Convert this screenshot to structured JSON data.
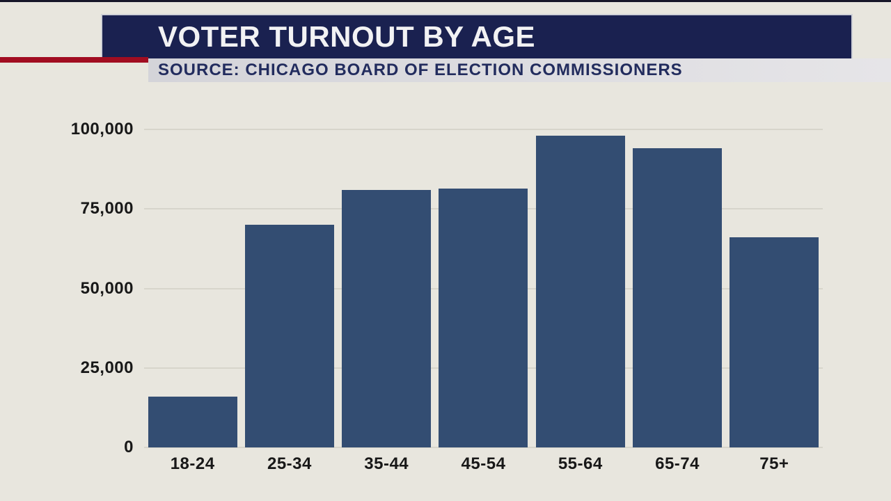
{
  "header": {
    "title": "VOTER TURNOUT BY AGE",
    "source": "SOURCE: CHICAGO BOARD OF ELECTION COMMISSIONERS"
  },
  "colors": {
    "background": "#e8e6de",
    "top_line": "#161629",
    "banner": "#1a2150",
    "banner_text": "#f2f2f4",
    "accent_red": "#a10d21",
    "source_band_left": "#d4d4d9",
    "source_band_right": "#e6e5e8",
    "source_text": "#222c5e",
    "bar": "#334d72",
    "gridline": "#d7d5cb",
    "axis_text": "#181818"
  },
  "chart_data": {
    "type": "bar",
    "title": "VOTER TURNOUT BY AGE",
    "subtitle": "SOURCE: CHICAGO BOARD OF ELECTION COMMISSIONERS",
    "categories": [
      "18-24",
      "25-34",
      "35-44",
      "45-54",
      "55-64",
      "65-74",
      "75+"
    ],
    "values": [
      16000,
      70000,
      81000,
      81500,
      98000,
      94000,
      66000
    ],
    "xlabel": "",
    "ylabel": "",
    "ylim": [
      0,
      100000
    ],
    "y_ticks": [
      {
        "value": 100000,
        "label": "100,000"
      },
      {
        "value": 75000,
        "label": "75,000"
      },
      {
        "value": 50000,
        "label": "50,000"
      },
      {
        "value": 25000,
        "label": "25,000"
      },
      {
        "value": 0,
        "label": "0"
      }
    ],
    "grid": true,
    "legend": false
  }
}
